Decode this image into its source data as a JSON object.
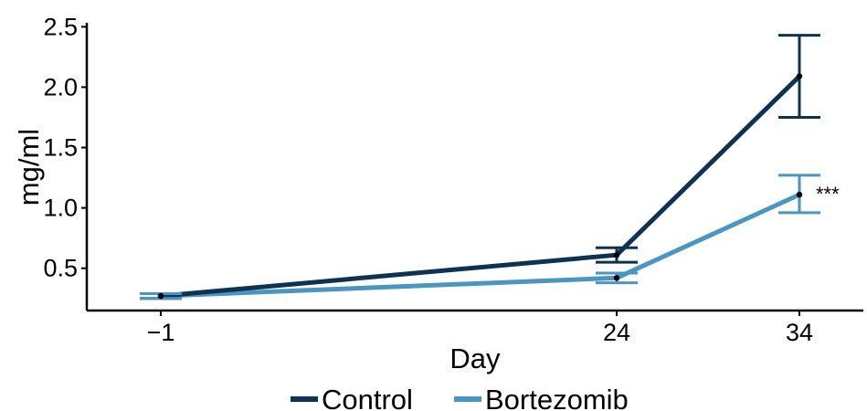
{
  "chart_data": {
    "type": "line",
    "title": "",
    "xlabel": "Day",
    "ylabel": "mg/ml",
    "x": [
      "−1",
      "24",
      "34"
    ],
    "ylim": [
      0.15,
      2.52
    ],
    "yticks": [
      "0.5",
      "1.0",
      "1.5",
      "2.0",
      "2.5"
    ],
    "grid": false,
    "legend_position": "bottom",
    "series": [
      {
        "name": "Control",
        "color": "#0d3252",
        "values": [
          0.27,
          0.61,
          2.09
        ],
        "error_low": [
          0.25,
          0.55,
          1.75
        ],
        "error_high": [
          0.29,
          0.67,
          2.43
        ]
      },
      {
        "name": "Bortezomib",
        "color": "#4b95c1",
        "values": [
          0.27,
          0.42,
          1.11
        ],
        "error_low": [
          0.25,
          0.38,
          0.96
        ],
        "error_high": [
          0.29,
          0.46,
          1.27
        ]
      }
    ],
    "annotations": [
      {
        "text": "***",
        "x_index": 2,
        "series": "Bortezomib"
      }
    ]
  }
}
